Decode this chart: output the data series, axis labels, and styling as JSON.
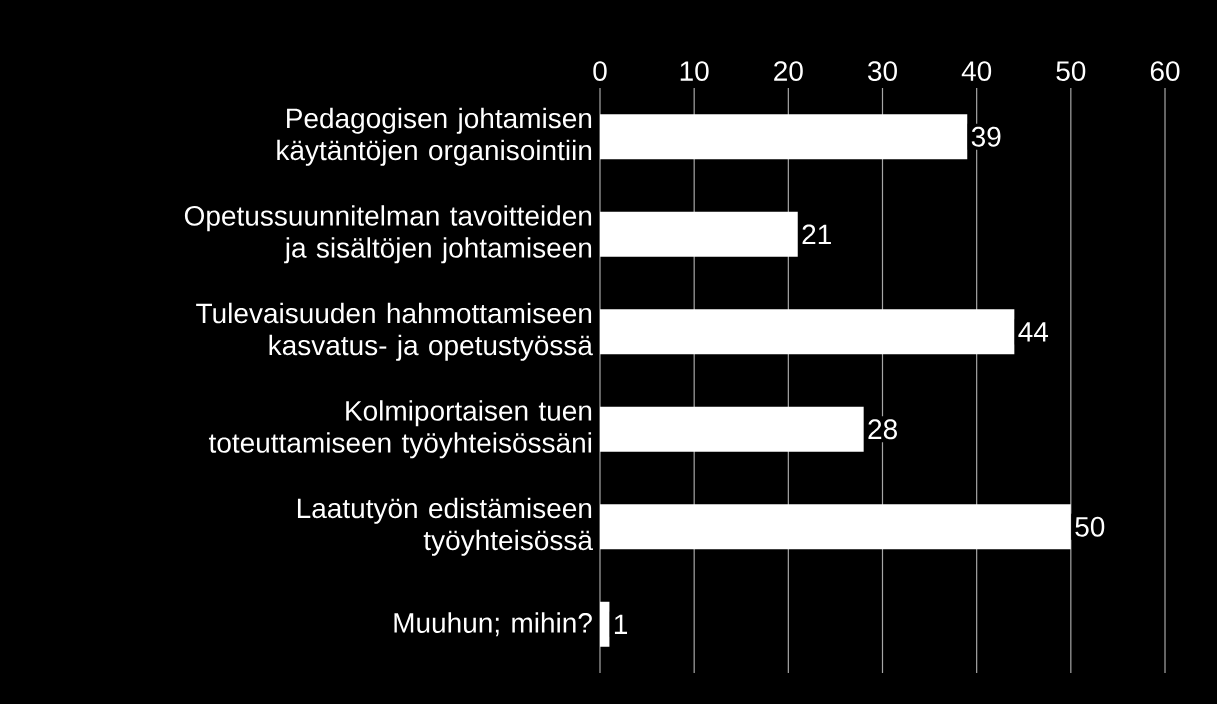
{
  "chart_data": {
    "type": "bar",
    "orientation": "horizontal",
    "categories": [
      "Pedagogisen johtamisen käytäntöjen organisointiin",
      "Opetussuunnitelman tavoitteiden ja sisältöjen johtamiseen",
      "Tulevaisuuden hahmottamiseen kasvatus- ja opetustyössä",
      "Kolmiportaisen tuen toteuttamiseen työyhteisössäni",
      "Laatutyön edistämiseen työyhteisössä",
      "Muuhun; mihin?"
    ],
    "values": [
      39,
      21,
      44,
      28,
      50,
      1
    ],
    "color": "#ffffff",
    "xlim": [
      0,
      60
    ],
    "xticks": [
      0,
      10,
      20,
      30,
      40,
      50,
      60
    ],
    "grid": "x",
    "data_labels": true
  }
}
